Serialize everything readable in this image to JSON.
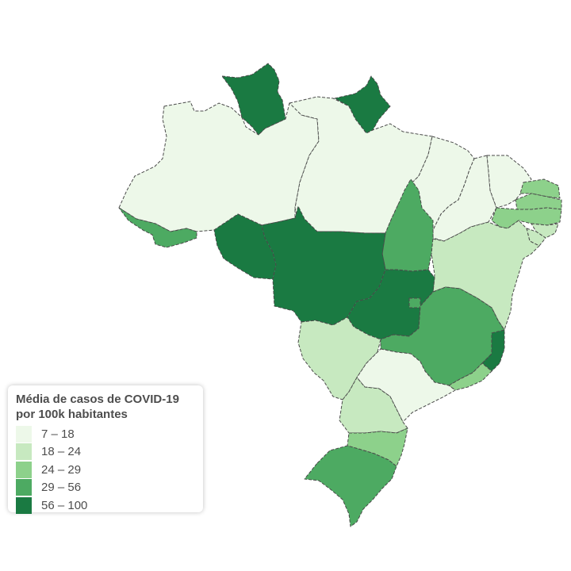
{
  "legend": {
    "title_line1": "Média de casos de COVID-19",
    "title_line2": "por 100k habitantes",
    "items": [
      {
        "label": "7 – 18",
        "color": "#edf8e9"
      },
      {
        "label": "18 – 24",
        "color": "#c7e9c0"
      },
      {
        "label": "24 – 29",
        "color": "#8dd18b"
      },
      {
        "label": "29 – 56",
        "color": "#4daa62"
      },
      {
        "label": "56 – 100",
        "color": "#1a7a42"
      }
    ]
  },
  "states": [
    {
      "name": "Roraima",
      "color": "#1a7a42"
    },
    {
      "name": "Amapá",
      "color": "#1a7a42"
    },
    {
      "name": "Amazonas",
      "color": "#edf8e9"
    },
    {
      "name": "Pará",
      "color": "#edf8e9"
    },
    {
      "name": "Acre",
      "color": "#4daa62"
    },
    {
      "name": "Rondônia",
      "color": "#1a7a42"
    },
    {
      "name": "Mato Grosso",
      "color": "#1a7a42"
    },
    {
      "name": "Tocantins",
      "color": "#4daa62"
    },
    {
      "name": "Maranhão",
      "color": "#edf8e9"
    },
    {
      "name": "Piauí",
      "color": "#edf8e9"
    },
    {
      "name": "Ceará",
      "color": "#edf8e9"
    },
    {
      "name": "Rio Grande do Norte",
      "color": "#8dd18b"
    },
    {
      "name": "Paraíba",
      "color": "#8dd18b"
    },
    {
      "name": "Pernambuco",
      "color": "#8dd18b"
    },
    {
      "name": "Alagoas",
      "color": "#c7e9c0"
    },
    {
      "name": "Sergipe",
      "color": "#c7e9c0"
    },
    {
      "name": "Bahia",
      "color": "#c7e9c0"
    },
    {
      "name": "Goiás",
      "color": "#1a7a42"
    },
    {
      "name": "Distrito Federal",
      "color": "#4daa62"
    },
    {
      "name": "Minas Gerais",
      "color": "#4daa62"
    },
    {
      "name": "Espírito Santo",
      "color": "#1a7a42"
    },
    {
      "name": "Rio de Janeiro",
      "color": "#8dd18b"
    },
    {
      "name": "Mato Grosso do Sul",
      "color": "#c7e9c0"
    },
    {
      "name": "São Paulo",
      "color": "#edf8e9"
    },
    {
      "name": "Paraná",
      "color": "#c7e9c0"
    },
    {
      "name": "Santa Catarina",
      "color": "#8dd18b"
    },
    {
      "name": "Rio Grande do Sul",
      "color": "#4daa62"
    }
  ]
}
